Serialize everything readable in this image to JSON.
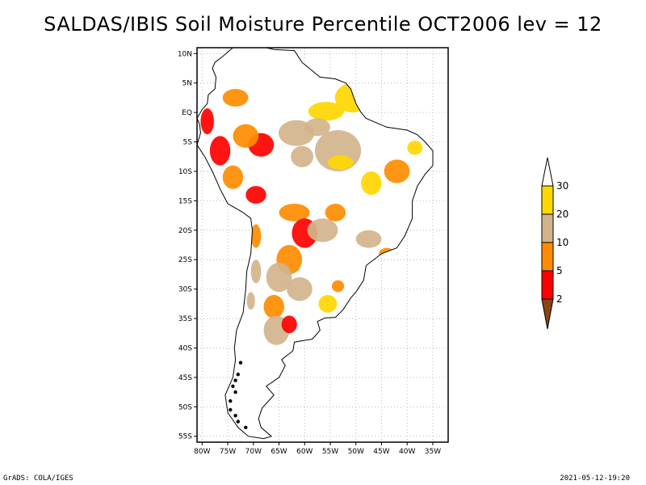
{
  "title": "SALDAS/IBIS Soil Moisture Percentile OCT2006 lev = 12",
  "footer_left": "GrADS: COLA/IGES",
  "footer_right": "2021-05-12-19:20",
  "map": {
    "lon_range": [
      -81,
      -32
    ],
    "lat_range": [
      -56,
      11
    ],
    "lon_ticks": [
      {
        "value": -80,
        "label": "80W"
      },
      {
        "value": -75,
        "label": "75W"
      },
      {
        "value": -70,
        "label": "70W"
      },
      {
        "value": -65,
        "label": "65W"
      },
      {
        "value": -60,
        "label": "60W"
      },
      {
        "value": -55,
        "label": "55W"
      },
      {
        "value": -50,
        "label": "50W"
      },
      {
        "value": -45,
        "label": "45W"
      },
      {
        "value": -40,
        "label": "40W"
      },
      {
        "value": -35,
        "label": "35W"
      }
    ],
    "lat_ticks": [
      {
        "value": 10,
        "label": "10N"
      },
      {
        "value": 5,
        "label": "5N"
      },
      {
        "value": 0,
        "label": "EQ"
      },
      {
        "value": -5,
        "label": "5S"
      },
      {
        "value": -10,
        "label": "10S"
      },
      {
        "value": -15,
        "label": "15S"
      },
      {
        "value": -20,
        "label": "20S"
      },
      {
        "value": -25,
        "label": "25S"
      },
      {
        "value": -30,
        "label": "30S"
      },
      {
        "value": -35,
        "label": "35S"
      },
      {
        "value": -40,
        "label": "40S"
      },
      {
        "value": -45,
        "label": "45S"
      },
      {
        "value": -50,
        "label": "50S"
      },
      {
        "value": -55,
        "label": "55S"
      }
    ],
    "grid_lines": true,
    "outline": [
      [
        -77.5,
        8.5
      ],
      [
        -76,
        9.5
      ],
      [
        -74,
        11
      ],
      [
        -71.5,
        12
      ],
      [
        -70,
        11.5
      ],
      [
        -66,
        10.7
      ],
      [
        -62,
        10.5
      ],
      [
        -60.5,
        8.5
      ],
      [
        -57,
        6
      ],
      [
        -54,
        5.7
      ],
      [
        -52,
        5
      ],
      [
        -51,
        4
      ],
      [
        -50,
        1.5
      ],
      [
        -49,
        0
      ],
      [
        -48,
        -1
      ],
      [
        -44,
        -2.5
      ],
      [
        -40,
        -3
      ],
      [
        -38,
        -3.8
      ],
      [
        -36.5,
        -5
      ],
      [
        -35,
        -6.5
      ],
      [
        -35,
        -9
      ],
      [
        -36.5,
        -10.5
      ],
      [
        -38,
        -12.5
      ],
      [
        -39,
        -15
      ],
      [
        -39,
        -18
      ],
      [
        -40.5,
        -21
      ],
      [
        -42,
        -23
      ],
      [
        -45,
        -24
      ],
      [
        -48,
        -26
      ],
      [
        -48.5,
        -28.5
      ],
      [
        -50,
        -30.5
      ],
      [
        -51,
        -31.5
      ],
      [
        -52.5,
        -33.5
      ],
      [
        -54,
        -34.8
      ],
      [
        -56,
        -34.9
      ],
      [
        -57.5,
        -35.5
      ],
      [
        -57,
        -37
      ],
      [
        -58.5,
        -38.5
      ],
      [
        -62,
        -39
      ],
      [
        -62.3,
        -40.5
      ],
      [
        -64.5,
        -42
      ],
      [
        -63.8,
        -43
      ],
      [
        -65,
        -45
      ],
      [
        -67.5,
        -46.5
      ],
      [
        -66,
        -48
      ],
      [
        -68.3,
        -50.2
      ],
      [
        -69,
        -52
      ],
      [
        -68.5,
        -53.5
      ],
      [
        -66.5,
        -55
      ],
      [
        -68,
        -55.4
      ],
      [
        -71,
        -55
      ],
      [
        -73,
        -53.5
      ],
      [
        -75,
        -51
      ],
      [
        -75.5,
        -48
      ],
      [
        -74,
        -45
      ],
      [
        -73.5,
        -42
      ],
      [
        -73.7,
        -40
      ],
      [
        -73.3,
        -37
      ],
      [
        -72,
        -34
      ],
      [
        -71.5,
        -30
      ],
      [
        -71.3,
        -27
      ],
      [
        -70.5,
        -24
      ],
      [
        -70.2,
        -20
      ],
      [
        -70.5,
        -18
      ],
      [
        -72,
        -17
      ],
      [
        -75,
        -15.5
      ],
      [
        -76.5,
        -13
      ],
      [
        -78,
        -10
      ],
      [
        -79.5,
        -7.5
      ],
      [
        -81,
        -5.5
      ],
      [
        -80.3,
        -3.5
      ],
      [
        -80.5,
        -2
      ],
      [
        -81,
        -1
      ],
      [
        -80,
        0.5
      ],
      [
        -79,
        1.5
      ],
      [
        -78.8,
        3
      ],
      [
        -77.5,
        4
      ],
      [
        -77.3,
        6
      ],
      [
        -78,
        7.5
      ],
      [
        -77.5,
        8.5
      ]
    ],
    "patches": [
      {
        "lon": -50.6,
        "lat": 2.5,
        "rx": 3.5,
        "ry": 2.5,
        "level": "l30"
      },
      {
        "lon": -55.8,
        "lat": 0.2,
        "rx": 3.5,
        "ry": 1.6,
        "level": "l30"
      },
      {
        "lon": -49.5,
        "lat": 3.8,
        "rx": 1.2,
        "ry": 1.2,
        "level": "l10"
      },
      {
        "lon": -61.6,
        "lat": -3.5,
        "rx": 3.5,
        "ry": 2.2,
        "level": "l20"
      },
      {
        "lon": -53.5,
        "lat": -6.5,
        "rx": 4.5,
        "ry": 3.5,
        "level": "l20"
      },
      {
        "lon": -57.5,
        "lat": -2.5,
        "rx": 2.5,
        "ry": 1.5,
        "level": "l20"
      },
      {
        "lon": -60.5,
        "lat": -7.5,
        "rx": 2.2,
        "ry": 1.8,
        "level": "l20"
      },
      {
        "lon": -53,
        "lat": -8.5,
        "rx": 2.5,
        "ry": 1.2,
        "level": "l30"
      },
      {
        "lon": -68.5,
        "lat": -5.5,
        "rx": 2.5,
        "ry": 2.0,
        "level": "l5"
      },
      {
        "lon": -71.5,
        "lat": -4.0,
        "rx": 2.5,
        "ry": 2.0,
        "level": "l10"
      },
      {
        "lon": -76.5,
        "lat": -6.5,
        "rx": 2.0,
        "ry": 2.5,
        "level": "l5"
      },
      {
        "lon": -79,
        "lat": -1.5,
        "rx": 1.3,
        "ry": 2.2,
        "level": "l5"
      },
      {
        "lon": -73.5,
        "lat": 2.5,
        "rx": 2.5,
        "ry": 1.5,
        "level": "l10"
      },
      {
        "lon": -74,
        "lat": -11,
        "rx": 2.0,
        "ry": 2.0,
        "level": "l10"
      },
      {
        "lon": -69.5,
        "lat": -14,
        "rx": 2.0,
        "ry": 1.5,
        "level": "l5"
      },
      {
        "lon": -62,
        "lat": -17,
        "rx": 3.0,
        "ry": 1.5,
        "level": "l10"
      },
      {
        "lon": -60,
        "lat": -20.5,
        "rx": 2.5,
        "ry": 2.5,
        "level": "l5"
      },
      {
        "lon": -56.5,
        "lat": -20,
        "rx": 3.0,
        "ry": 2.0,
        "level": "l20"
      },
      {
        "lon": -54,
        "lat": -17,
        "rx": 2.0,
        "ry": 1.5,
        "level": "l10"
      },
      {
        "lon": -47.5,
        "lat": -21.5,
        "rx": 2.5,
        "ry": 1.5,
        "level": "l20"
      },
      {
        "lon": -44,
        "lat": -24,
        "rx": 1.5,
        "ry": 1.0,
        "level": "l10"
      },
      {
        "lon": -42,
        "lat": -10,
        "rx": 2.5,
        "ry": 2.0,
        "level": "l10"
      },
      {
        "lon": -47,
        "lat": -12,
        "rx": 2.0,
        "ry": 2.0,
        "level": "l30"
      },
      {
        "lon": -38.5,
        "lat": -6.0,
        "rx": 1.5,
        "ry": 1.2,
        "level": "l30"
      },
      {
        "lon": -63,
        "lat": -25,
        "rx": 2.5,
        "ry": 2.5,
        "level": "l10"
      },
      {
        "lon": -65,
        "lat": -28,
        "rx": 2.5,
        "ry": 2.5,
        "level": "l20"
      },
      {
        "lon": -61,
        "lat": -30,
        "rx": 2.5,
        "ry": 2.0,
        "level": "l20"
      },
      {
        "lon": -66,
        "lat": -33,
        "rx": 2.0,
        "ry": 2.0,
        "level": "l10"
      },
      {
        "lon": -65.5,
        "lat": -37,
        "rx": 2.5,
        "ry": 2.5,
        "level": "l20"
      },
      {
        "lon": -63,
        "lat": -36,
        "rx": 1.5,
        "ry": 1.5,
        "level": "l5"
      },
      {
        "lon": -55.5,
        "lat": -32.5,
        "rx": 1.8,
        "ry": 1.5,
        "level": "l30"
      },
      {
        "lon": -53.5,
        "lat": -29.5,
        "rx": 1.2,
        "ry": 1.0,
        "level": "l10"
      },
      {
        "lon": -69.5,
        "lat": -21,
        "rx": 1.0,
        "ry": 2.0,
        "level": "l10"
      },
      {
        "lon": -69.5,
        "lat": -27,
        "rx": 1.0,
        "ry": 2.0,
        "level": "l20"
      },
      {
        "lon": -70.5,
        "lat": -32,
        "rx": 0.8,
        "ry": 1.5,
        "level": "l20"
      }
    ],
    "patagonia_dark": [
      {
        "lon": -73,
        "lat": -44.5
      },
      {
        "lon": -73.5,
        "lat": -45.5
      },
      {
        "lon": -74,
        "lat": -46.5
      },
      {
        "lon": -73.5,
        "lat": -47.5
      },
      {
        "lon": -74.5,
        "lat": -49
      },
      {
        "lon": -74.5,
        "lat": -50.5
      },
      {
        "lon": -73.5,
        "lat": -51.5
      },
      {
        "lon": -73,
        "lat": -52.5
      },
      {
        "lon": -71.5,
        "lat": -53.5
      },
      {
        "lon": -72.5,
        "lat": -42.5
      },
      {
        "lon": -74,
        "lat": -43
      }
    ]
  },
  "legend": {
    "colors": {
      "gt30": "#ffffff",
      "l30": "#ffd700",
      "l20": "#d2b48c",
      "l10": "#ff8c00",
      "l5": "#ff0000",
      "l2": "#8b4513"
    },
    "labels": [
      "30",
      "20",
      "10",
      "5",
      "2"
    ]
  }
}
